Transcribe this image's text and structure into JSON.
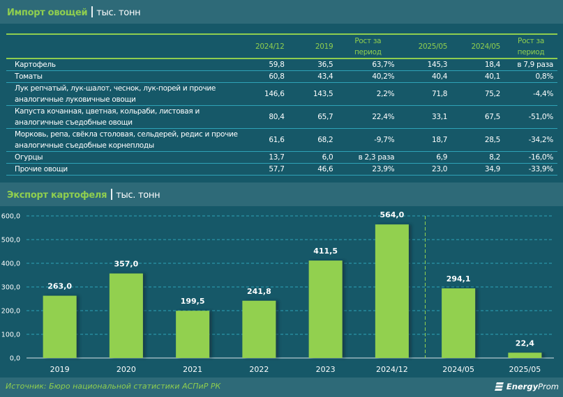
{
  "import_section": {
    "title": "Импорт овощей",
    "unit": "тыс. тонн"
  },
  "table": {
    "columns": [
      "",
      "2024/12",
      "2019",
      "Рост за период",
      "2025/05",
      "2024/05",
      "Рост за период"
    ],
    "rows": [
      {
        "name": "Картофель",
        "values": [
          "59,8",
          "36,5",
          "63,7%",
          "145,3",
          "18,4",
          "в 7,9 раза"
        ]
      },
      {
        "name": "Томаты",
        "values": [
          "60,8",
          "43,4",
          "40,2%",
          "40,4",
          "40,1",
          "0,8%"
        ]
      },
      {
        "name": "Лук репчатый, лук-шалот, чеснок, лук-порей и прочие аналогичные луковичные овощи",
        "values": [
          "146,6",
          "143,5",
          "2,2%",
          "71,8",
          "75,2",
          "-4,4%"
        ]
      },
      {
        "name": "Капуста кочанная, цветная, кольраби, листовая и аналогичные съедобные овощи",
        "values": [
          "80,4",
          "65,7",
          "22,4%",
          "33,1",
          "67,5",
          "-51,0%"
        ]
      },
      {
        "name": "Морковь, репа, свёкла столовая, сельдерей, редис и прочие аналогичные съедобные корнеплоды",
        "values": [
          "61,6",
          "68,2",
          "-9,7%",
          "18,7",
          "28,5",
          "-34,2%"
        ]
      },
      {
        "name": "Огурцы",
        "values": [
          "13,7",
          "6,0",
          "в 2,3 раза",
          "6,9",
          "8,2",
          "-16,0%"
        ]
      },
      {
        "name": "Прочие овощи",
        "values": [
          "57,7",
          "46,6",
          "23,9%",
          "23,0",
          "34,9",
          "-33,9%"
        ]
      }
    ]
  },
  "export_section": {
    "title": "Экспорт картофеля",
    "unit": "тыс. тонн"
  },
  "chart_data": {
    "type": "bar",
    "title": "Экспорт картофеля | тыс. тонн",
    "xlabel": "",
    "ylabel": "",
    "categories": [
      "2019",
      "2020",
      "2021",
      "2022",
      "2023",
      "2024/12",
      "2024/05",
      "2025/05"
    ],
    "values": [
      263.0,
      357.0,
      199.5,
      241.8,
      411.5,
      564.0,
      294.1,
      22.4
    ],
    "value_labels": [
      "263,0",
      "357,0",
      "199,5",
      "241,8",
      "411,5",
      "564,0",
      "294,1",
      "22,4"
    ],
    "ylim": [
      0,
      600
    ],
    "yticks": [
      0,
      100,
      200,
      300,
      400,
      500,
      600
    ],
    "ytick_labels": [
      "0,0",
      "100,0",
      "200,0",
      "300,0",
      "400,0",
      "500,0",
      "600,0"
    ],
    "grid": true,
    "separator_after_index": 5,
    "bar_color": "#92d050",
    "grid_color": "#2fa3b8",
    "separator_color": "#92d050"
  },
  "footer": {
    "source": "Источник: Бюро национальной статистики АСПиР РК",
    "logo_bold": "Energy",
    "logo_light": "Prom"
  }
}
